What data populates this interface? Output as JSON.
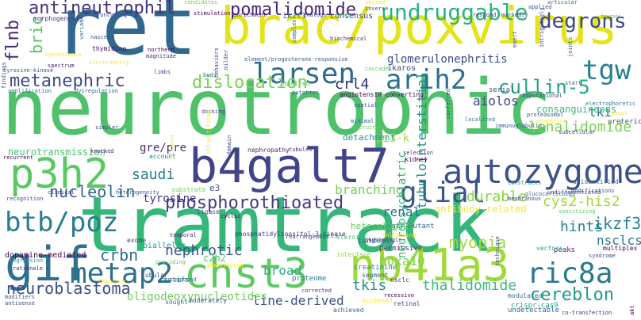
{
  "words": [
    {
      "text": "neurotrophic",
      "color": "#4fc16b"
    },
    {
      "text": "tramtrack",
      "color": "#35b779"
    },
    {
      "text": "ret",
      "color": "#31688e"
    },
    {
      "text": "brac/poxvirus",
      "color": "#e2e418"
    },
    {
      "text": "b4galt7",
      "color": "#414487"
    },
    {
      "text": "p3h2",
      "color": "#5ac864"
    },
    {
      "text": "autozygome",
      "color": "#3b528b"
    },
    {
      "text": "chst3",
      "color": "#5ec962"
    },
    {
      "text": "nb41a3",
      "color": "#a0da39"
    },
    {
      "text": "gif",
      "color": "#2c728e"
    },
    {
      "text": "larsen",
      "color": "#2f6c8e"
    },
    {
      "text": "metap2",
      "color": "#2d718e"
    },
    {
      "text": "glial",
      "color": "#38588c"
    },
    {
      "text": "btb/poz",
      "color": "#287d8e"
    },
    {
      "text": "ric8a",
      "color": "#2a788e"
    },
    {
      "text": "tgw",
      "color": "#26828e"
    },
    {
      "text": "arih2",
      "color": "#2c728e"
    },
    {
      "text": "phosphorothioated",
      "color": "#443a83"
    },
    {
      "text": "metanephric",
      "color": "#3e4989"
    },
    {
      "text": "dislocation",
      "color": "#7ad151"
    },
    {
      "text": "pomalidomide",
      "color": "#482576"
    },
    {
      "text": "antineutrophil",
      "color": "#46327e"
    },
    {
      "text": "degrons",
      "color": "#3f4788"
    },
    {
      "text": "undruggable",
      "color": "#2db27d"
    },
    {
      "text": "cullin-5",
      "color": "#21a585"
    },
    {
      "text": "neuroblastoma",
      "color": "#3e4c8a"
    },
    {
      "text": "cereblon",
      "color": "#1e9c89"
    },
    {
      "text": "thalidomide",
      "color": "#3dbc74"
    },
    {
      "text": "nucleolin",
      "color": "#33638d"
    },
    {
      "text": "crbn",
      "color": "#2e6e8e"
    },
    {
      "text": "branching",
      "color": "#75d054"
    },
    {
      "text": "flnb",
      "color": "#482878"
    },
    {
      "text": "bric",
      "color": "#56c667"
    },
    {
      "text": "crl4",
      "color": "#2a2d6e"
    },
    {
      "text": "ikzf3",
      "color": "#24878e"
    },
    {
      "text": "myopia",
      "color": "#9fda3a"
    },
    {
      "text": "cys2-his2",
      "color": "#a2da37"
    },
    {
      "text": "saudi",
      "color": "#27808e"
    },
    {
      "text": "lenalidomide",
      "color": "#7ad151"
    },
    {
      "text": "nephrotic",
      "color": "#3a548c"
    },
    {
      "text": "tubulointerstitial",
      "color": "#21908d"
    },
    {
      "text": "nsclcs",
      "color": "#29798e"
    },
    {
      "text": "hints",
      "color": "#25848e"
    },
    {
      "text": "tkis",
      "color": "#20928c"
    },
    {
      "text": "hoxa10",
      "color": "#7ad151"
    },
    {
      "text": "line-derived",
      "color": "#3d4e8a"
    },
    {
      "text": "durable",
      "color": "#86d549"
    },
    {
      "text": "tyrosine",
      "color": "#453882"
    },
    {
      "text": "aiolos",
      "color": "#3e4a89"
    },
    {
      "text": "neuropsychiatric",
      "color": "#35b779"
    },
    {
      "text": "gre/pre",
      "color": "#472c7a"
    },
    {
      "text": "renal",
      "color": "#2c738e"
    },
    {
      "text": "tki",
      "color": "#2a788e"
    },
    {
      "text": "broad",
      "color": "#2ab07f"
    },
    {
      "text": "pi3-k",
      "color": "#9bd93c"
    },
    {
      "text": "c2h2",
      "color": "#4ec36b"
    },
    {
      "text": "consanguineous",
      "color": "#35b779"
    },
    {
      "text": "glomerulonephritis",
      "color": "#3e4c8a"
    },
    {
      "text": "antibody-related",
      "color": "#fde725"
    },
    {
      "text": "oligodeoxynucleotides",
      "color": "#6ccd5a"
    },
    {
      "text": "neurotransmission",
      "color": "#4ac16d"
    },
    {
      "text": "dopamine-mediated",
      "color": "#440154"
    },
    {
      "text": "detachment",
      "color": "#20928c"
    },
    {
      "text": "ikzf1",
      "color": "#2a788e"
    },
    {
      "text": "consensus",
      "color": "#3e4989"
    },
    {
      "text": "morphogenesis",
      "color": "#46327e"
    },
    {
      "text": "angiotensin-converting",
      "color": "#440154"
    },
    {
      "text": "element/progesterone-responsive",
      "color": "#3b528b"
    },
    {
      "text": "phosphatidylinositol-3-kinase",
      "color": "#443983"
    },
    {
      "text": "egfr-mutant",
      "color": "#31688e"
    },
    {
      "text": "ikaros",
      "color": "#3e4989"
    },
    {
      "text": "nephropathy",
      "color": "#482173"
    },
    {
      "text": "proteome",
      "color": "#2a788e"
    },
    {
      "text": "creatinine",
      "color": "#23898e"
    },
    {
      "text": "heterologous",
      "color": "#5ec962"
    },
    {
      "text": "interface",
      "color": "#8fd744"
    },
    {
      "text": "biallelic",
      "color": "#1fa188"
    },
    {
      "text": "motifs",
      "color": "#35608d"
    },
    {
      "text": "exome",
      "color": "#44397d"
    },
    {
      "text": "peaks",
      "color": "#482475"
    },
    {
      "text": "rearrangement",
      "color": "#414487"
    },
    {
      "text": "cyclic",
      "color": "#440154"
    },
    {
      "text": "ligase",
      "color": "#3b528b"
    },
    {
      "text": "permissive",
      "color": "#472d7b"
    },
    {
      "text": "tandemly",
      "color": "#2e6f8e"
    },
    {
      "text": "steroids",
      "color": "#3dbc74"
    },
    {
      "text": "ducts",
      "color": "#238a8d"
    },
    {
      "text": "e3",
      "color": "#3b528b"
    },
    {
      "text": "account",
      "color": "#277f8e"
    },
    {
      "text": "substrate",
      "color": "#6ece58"
    },
    {
      "text": "heterogeneity",
      "color": "#33638d"
    },
    {
      "text": "crispr-cas9",
      "color": "#20a386"
    },
    {
      "text": "co-transfection",
      "color": "#46337e"
    },
    {
      "text": "undetectable",
      "color": "#31688e"
    },
    {
      "text": "ureteric",
      "color": "#39568c"
    },
    {
      "text": "multiplex",
      "color": "#440154"
    },
    {
      "text": "syndrome",
      "color": "#3b528b"
    },
    {
      "text": "vectors",
      "color": "#20a486"
    },
    {
      "text": "segment",
      "color": "#31688e"
    },
    {
      "text": "serial",
      "color": "#3e4989"
    },
    {
      "text": "sought",
      "color": "#2f6c8e"
    },
    {
      "text": "moderately",
      "color": "#3b528b"
    },
    {
      "text": "achieved",
      "color": "#31688e"
    },
    {
      "text": "screened",
      "color": "#fde725"
    },
    {
      "text": "corrected",
      "color": "#46337e"
    },
    {
      "text": "recessive",
      "color": "#440154"
    },
    {
      "text": "retinal",
      "color": "#3b528b"
    },
    {
      "text": "nsclc",
      "color": "#453882"
    },
    {
      "text": "modulated",
      "color": "#2d708e"
    },
    {
      "text": "compound",
      "color": "#2a788e"
    },
    {
      "text": "tubular",
      "color": "#39568c"
    },
    {
      "text": "providing",
      "color": "#5ec962"
    },
    {
      "text": "identifying",
      "color": "#fde725"
    },
    {
      "text": "temporal",
      "color": "#482475"
    },
    {
      "text": "physiologic",
      "color": "#414487"
    },
    {
      "text": "collecting",
      "color": "#fde725"
    },
    {
      "text": "undifferentiated",
      "color": "#433e85"
    },
    {
      "text": "sensitizing",
      "color": "#5ec962"
    },
    {
      "text": "modifications",
      "color": "#3b528b"
    },
    {
      "text": "unidentified",
      "color": "#2c728e"
    },
    {
      "text": "glucocorticoids",
      "color": "#31688e"
    },
    {
      "text": "constructs",
      "color": "#21918c"
    },
    {
      "text": "membranous",
      "color": "#3e4989"
    },
    {
      "text": "selection",
      "color": "#433e85"
    },
    {
      "text": "kidney",
      "color": "#440154"
    },
    {
      "text": "tubules",
      "color": "#46327e"
    },
    {
      "text": "minimal",
      "color": "#31688e"
    },
    {
      "text": "recruiting",
      "color": "#5ec962"
    },
    {
      "text": "spatial",
      "color": "#3b528b"
    },
    {
      "text": "docking",
      "color": "#414487"
    },
    {
      "text": "simpler",
      "color": "#3e4989"
    },
    {
      "text": "knocked",
      "color": "#482173"
    },
    {
      "text": "recurrent",
      "color": "#440154"
    },
    {
      "text": "recognition",
      "color": "#3b528b"
    },
    {
      "text": "clinical",
      "color": "#46327e"
    },
    {
      "text": "regression",
      "color": "#20a486"
    },
    {
      "text": "rationale",
      "color": "#482878"
    },
    {
      "text": "modifiers",
      "color": "#3b528b"
    },
    {
      "text": "antisense",
      "color": "#3e4989"
    },
    {
      "text": "exposure",
      "color": "#fde725"
    },
    {
      "text": "amplification",
      "color": "#2a788e"
    },
    {
      "text": "dysregulation",
      "color": "#31688e"
    },
    {
      "text": "electrometry",
      "color": "#fde725"
    },
    {
      "text": "spectrum",
      "color": "#482475"
    },
    {
      "text": "hypokalemia",
      "color": "#fde725"
    },
    {
      "text": "tyrosine-kinase",
      "color": "#3b528b"
    },
    {
      "text": "nascent",
      "color": "#3b528b"
    },
    {
      "text": "thymidine",
      "color": "#440154"
    },
    {
      "text": "northern",
      "color": "#440154"
    },
    {
      "text": "magnitude",
      "color": "#46327e"
    },
    {
      "text": "limbs",
      "color": "#3e4989"
    },
    {
      "text": "buds",
      "color": "#2a788e"
    },
    {
      "text": "impaired",
      "color": "#5ec962"
    },
    {
      "text": "putative",
      "color": "#31688e"
    },
    {
      "text": "truncating",
      "color": "#3b528b"
    },
    {
      "text": "candidates",
      "color": "#7ad151"
    },
    {
      "text": "stimulation",
      "color": "#440154"
    },
    {
      "text": "enrichment",
      "color": "#482475"
    },
    {
      "text": "analogs",
      "color": "#414487"
    },
    {
      "text": "named",
      "color": "#5ec962"
    },
    {
      "text": "shared",
      "color": "#fde725"
    },
    {
      "text": "inverse",
      "color": "#3b528b"
    },
    {
      "text": "respond",
      "color": "#3e4989"
    },
    {
      "text": "markedly",
      "color": "#3b528b"
    },
    {
      "text": "articular",
      "color": "#31688e"
    },
    {
      "text": "applied",
      "color": "#3b528b"
    },
    {
      "text": "herpes",
      "color": "#5ec962"
    },
    {
      "text": "biochemical",
      "color": "#46327e"
    },
    {
      "text": "behaviors",
      "color": "#3e4989"
    },
    {
      "text": "milder",
      "color": "#3b528b"
    },
    {
      "text": "findings",
      "color": "#3b528b"
    },
    {
      "text": "variable",
      "color": "#31688e"
    },
    {
      "text": "intriguingly",
      "color": "#414487"
    },
    {
      "text": "joints",
      "color": "#3b528b"
    },
    {
      "text": "computational",
      "color": "#3e4989"
    },
    {
      "text": "start",
      "color": "#3b528b"
    },
    {
      "text": "electrophoretic",
      "color": "#2a788e"
    },
    {
      "text": "exist",
      "color": "#fde725"
    },
    {
      "text": "proteasomal",
      "color": "#3b528b"
    },
    {
      "text": "properly",
      "color": "#fde725"
    },
    {
      "text": "immunoglobulin",
      "color": "#3b528b"
    },
    {
      "text": "subcellular",
      "color": "#3e4989"
    },
    {
      "text": "cascades",
      "color": "#5ec962"
    },
    {
      "text": "localized",
      "color": "#2a788e"
    },
    {
      "text": "conferred",
      "color": "#3b528b"
    },
    {
      "text": "exert",
      "color": "#3e4989"
    },
    {
      "text": "complex",
      "color": "#31688e"
    },
    {
      "text": "akt",
      "color": "#440154"
    },
    {
      "text": "technique",
      "color": "#3b528b"
    },
    {
      "text": "domain",
      "color": "#3e4989"
    },
    {
      "text": "ubiquitylated",
      "color": "#fde725"
    },
    {
      "text": "plasmid",
      "color": "#fde725"
    }
  ]
}
